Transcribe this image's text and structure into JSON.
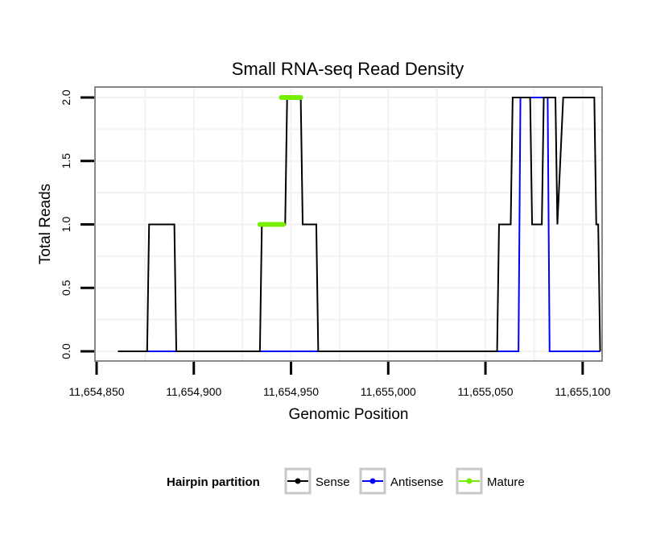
{
  "chart_data": {
    "type": "line",
    "title": "Small RNA-seq Read Density",
    "xlabel": "Genomic Position",
    "ylabel": "Total Reads",
    "xlim": [
      11654850,
      11655110
    ],
    "ylim": [
      -0.07,
      2.07
    ],
    "x_ticks": [
      11654850,
      11654900,
      11654950,
      11655000,
      11655050,
      11655100
    ],
    "x_tick_labels": [
      "11,654,850",
      "11,654,900",
      "11,654,950",
      "11,655,000",
      "11,655,050",
      "11,655,100"
    ],
    "y_ticks": [
      0.0,
      0.5,
      1.0,
      1.5,
      2.0
    ],
    "y_tick_labels": [
      "0.0",
      "0.5",
      "1.0",
      "1.5",
      "2.0"
    ],
    "grid": true,
    "legend": {
      "title": "Hairpin partition",
      "placement": "bottom"
    },
    "series": [
      {
        "name": "Sense",
        "color": "#000000",
        "x": [
          11654861,
          11654876,
          11654877,
          11654890,
          11654891,
          11654934,
          11654935,
          11654947,
          11654948,
          11654955,
          11654956,
          11654963,
          11654964,
          11655056,
          11655057,
          11655063,
          11655064,
          11655073,
          11655074,
          11655079,
          11655080,
          11655086,
          11655087,
          11655090,
          11655091,
          11655106,
          11655107,
          11655108,
          11655109
        ],
        "y": [
          0,
          0,
          1,
          1,
          0,
          0,
          1,
          1,
          2,
          2,
          1,
          1,
          0,
          0,
          1,
          1,
          2,
          2,
          1,
          1,
          2,
          2,
          1,
          2,
          2,
          2,
          1,
          1,
          0
        ]
      },
      {
        "name": "Antisense",
        "color": "#0000ff",
        "x": [
          11654861,
          11655067,
          11655068,
          11655082,
          11655083,
          11655109
        ],
        "y": [
          0,
          0,
          2,
          2,
          0,
          0
        ]
      },
      {
        "name": "Mature",
        "color": "#77ee00",
        "segments": [
          {
            "x": [
              11654934,
              11654946
            ],
            "y": [
              1,
              1
            ]
          },
          {
            "x": [
              11654945,
              11654955
            ],
            "y": [
              2,
              2
            ]
          }
        ]
      }
    ]
  }
}
